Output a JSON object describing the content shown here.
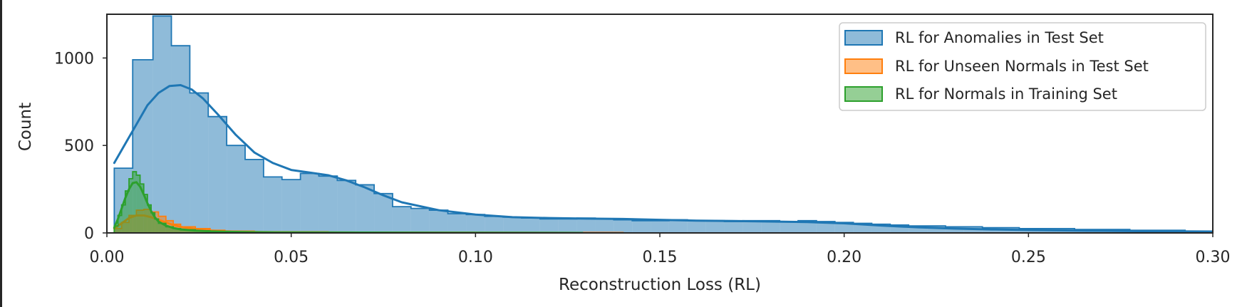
{
  "chart_data": {
    "type": "histogram",
    "xlabel": "Reconstruction Loss (RL)",
    "ylabel": "Count",
    "xlim": [
      0.0,
      0.3
    ],
    "ylim": [
      0,
      1250
    ],
    "xticks": [
      0.0,
      0.05,
      0.1,
      0.15,
      0.2,
      0.25,
      0.3
    ],
    "xtick_labels": [
      "0.00",
      "0.05",
      "0.10",
      "0.15",
      "0.20",
      "0.25",
      "0.30"
    ],
    "yticks": [
      0,
      500,
      1000
    ],
    "ytick_labels": [
      "0",
      "500",
      "1000"
    ],
    "grid": false,
    "legend_position": "top-right",
    "series": [
      {
        "name": "RL for Anomalies in Test Set",
        "color": "#1f77b4",
        "bin_edges": [
          0.002,
          0.007,
          0.0125,
          0.0175,
          0.0225,
          0.0275,
          0.0325,
          0.0375,
          0.0425,
          0.0475,
          0.0525,
          0.0575,
          0.0625,
          0.0675,
          0.0725,
          0.0775,
          0.0825,
          0.0875,
          0.0925,
          0.0975,
          0.1025,
          0.1075,
          0.1125,
          0.1175,
          0.1225,
          0.1275,
          0.1325,
          0.1375,
          0.1425,
          0.1475,
          0.1525,
          0.1575,
          0.1625,
          0.1675,
          0.1725,
          0.1775,
          0.1825,
          0.1875,
          0.1925,
          0.1975,
          0.2025,
          0.2075,
          0.2125,
          0.2175,
          0.2225,
          0.2275,
          0.2325,
          0.2375,
          0.2425,
          0.2475,
          0.2525,
          0.2575,
          0.2625,
          0.2675,
          0.2725,
          0.2775,
          0.2825,
          0.2875,
          0.2925,
          0.3
        ],
        "counts": [
          370,
          990,
          1240,
          1070,
          800,
          665,
          500,
          420,
          320,
          305,
          340,
          325,
          300,
          275,
          225,
          150,
          140,
          130,
          110,
          105,
          95,
          90,
          85,
          80,
          80,
          85,
          80,
          75,
          70,
          70,
          75,
          70,
          70,
          65,
          70,
          70,
          65,
          70,
          65,
          60,
          55,
          50,
          45,
          40,
          40,
          35,
          35,
          30,
          30,
          25,
          25,
          25,
          20,
          20,
          20,
          15,
          15,
          15,
          10
        ],
        "kde": {
          "x": [
            0.002,
            0.005,
            0.008,
            0.011,
            0.014,
            0.017,
            0.02,
            0.023,
            0.026,
            0.03,
            0.035,
            0.04,
            0.045,
            0.05,
            0.055,
            0.06,
            0.065,
            0.07,
            0.075,
            0.08,
            0.09,
            0.1,
            0.11,
            0.12,
            0.13,
            0.14,
            0.15,
            0.16,
            0.17,
            0.18,
            0.19,
            0.2,
            0.21,
            0.22,
            0.23,
            0.24,
            0.25,
            0.26,
            0.27,
            0.28,
            0.29,
            0.3
          ],
          "y": [
            400,
            510,
            620,
            730,
            800,
            840,
            845,
            820,
            770,
            680,
            560,
            460,
            400,
            360,
            345,
            330,
            300,
            260,
            215,
            175,
            130,
            105,
            90,
            85,
            82,
            80,
            75,
            70,
            68,
            65,
            62,
            55,
            42,
            32,
            25,
            20,
            17,
            14,
            12,
            10,
            9,
            8
          ]
        }
      },
      {
        "name": "RL for Unseen Normals in Test Set",
        "color": "#ff7f0e",
        "bin_edges": [
          0.002,
          0.004,
          0.006,
          0.008,
          0.01,
          0.012,
          0.014,
          0.016,
          0.018,
          0.02,
          0.024,
          0.028,
          0.032,
          0.04,
          0.06,
          0.1,
          0.14
        ],
        "counts": [
          25,
          60,
          100,
          130,
          135,
          120,
          95,
          70,
          50,
          35,
          25,
          15,
          10,
          6,
          3,
          2
        ],
        "kde": {
          "x": [
            0.002,
            0.004,
            0.006,
            0.008,
            0.01,
            0.012,
            0.014,
            0.016,
            0.018,
            0.02,
            0.024,
            0.028,
            0.032,
            0.04,
            0.05,
            0.07,
            0.1,
            0.14
          ],
          "y": [
            25,
            55,
            85,
            100,
            100,
            90,
            75,
            60,
            45,
            35,
            22,
            14,
            9,
            5,
            3,
            2,
            1,
            0
          ]
        }
      },
      {
        "name": "RL for Normals in Training Set",
        "color": "#2ca02c",
        "bin_edges": [
          0.002,
          0.003,
          0.004,
          0.005,
          0.006,
          0.007,
          0.008,
          0.009,
          0.01,
          0.011,
          0.012,
          0.013,
          0.014,
          0.016,
          0.018,
          0.02,
          0.024,
          0.028,
          0.034,
          0.045,
          0.07,
          0.1,
          0.129
        ],
        "counts": [
          40,
          100,
          160,
          240,
          310,
          350,
          330,
          280,
          220,
          160,
          115,
          80,
          55,
          35,
          25,
          18,
          12,
          8,
          5,
          3,
          2,
          1
        ],
        "kde": {
          "x": [
            0.002,
            0.003,
            0.004,
            0.005,
            0.006,
            0.007,
            0.008,
            0.009,
            0.01,
            0.011,
            0.012,
            0.013,
            0.014,
            0.016,
            0.018,
            0.02,
            0.024,
            0.028,
            0.034,
            0.045,
            0.07,
            0.1,
            0.129
          ],
          "y": [
            30,
            80,
            140,
            200,
            250,
            285,
            290,
            265,
            220,
            170,
            125,
            90,
            65,
            42,
            28,
            20,
            13,
            9,
            6,
            3,
            2,
            1,
            0
          ]
        }
      }
    ]
  }
}
